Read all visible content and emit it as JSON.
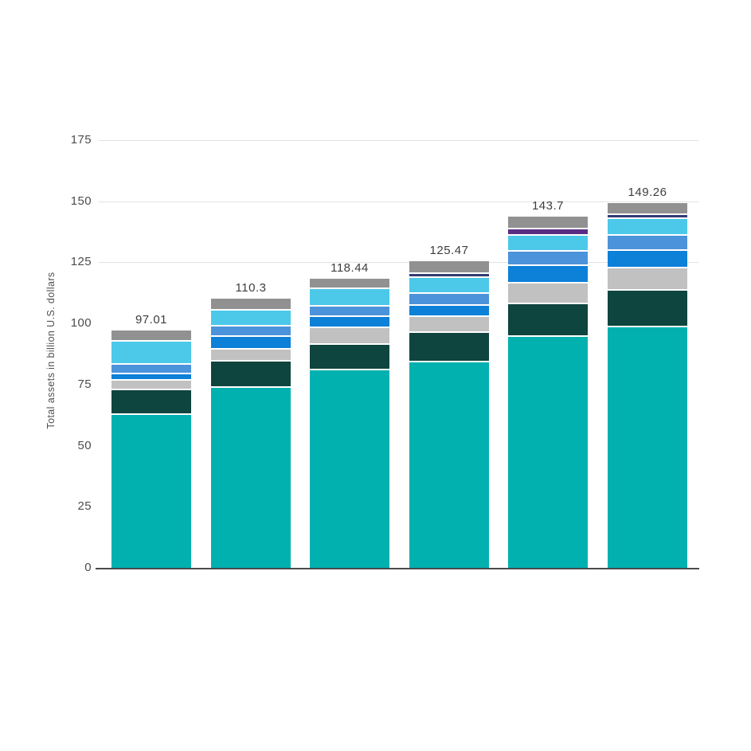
{
  "chart_data": {
    "type": "bar",
    "stacked": true,
    "title": "",
    "xlabel": "",
    "ylabel": "Total assets in billion U.S. dollars",
    "ylim": [
      0,
      175
    ],
    "y_ticks": [
      0,
      25,
      50,
      75,
      100,
      125,
      150,
      175
    ],
    "y_tick_labels": [
      "0",
      "25",
      "50",
      "75",
      "100",
      "125",
      "150",
      "175"
    ],
    "gridline_values": [
      125,
      150,
      175
    ],
    "grid": "partial-top",
    "legend": "none",
    "categories": [
      "",
      "",
      "",
      "",
      "",
      ""
    ],
    "totals": [
      97.01,
      110.3,
      118.44,
      125.47,
      143.7,
      149.26
    ],
    "total_labels": [
      "97.01",
      "110.3",
      "118.44",
      "125.47",
      "143.7",
      "149.26"
    ],
    "colors": {
      "teal": "#00b1b0",
      "dark_teal": "#0e453e",
      "light_gray": "#c2c1c1",
      "blue": "#0d80d8",
      "cornflower_blue": "#4b93da",
      "light_cyan": "#4cc8e9",
      "navy": "#333c72",
      "purple": "#5a2d85",
      "top_gray": "#919191",
      "axis_line": "#4a4a4a",
      "gridline": "#e2e2e2",
      "label_text": "#3d3d3d",
      "tick_text": "#4c4c4c"
    },
    "bars": [
      {
        "label": "97.01",
        "total": 97.01,
        "segments": [
          {
            "color": "teal",
            "value": 63.31
          },
          {
            "color": "dark_teal",
            "value": 10.1
          },
          {
            "color": "light_gray",
            "value": 3.8
          },
          {
            "color": "blue",
            "value": 2.8
          },
          {
            "color": "cornflower_blue",
            "value": 3.7
          },
          {
            "color": "light_cyan",
            "value": 9.6
          },
          {
            "color": "top_gray",
            "value": 3.7
          }
        ]
      },
      {
        "label": "110.3",
        "total": 110.3,
        "segments": [
          {
            "color": "teal",
            "value": 74.4
          },
          {
            "color": "dark_teal",
            "value": 10.6
          },
          {
            "color": "light_gray",
            "value": 5.1
          },
          {
            "color": "blue",
            "value": 5.1
          },
          {
            "color": "cornflower_blue",
            "value": 4.1
          },
          {
            "color": "light_cyan",
            "value": 6.7
          },
          {
            "color": "top_gray",
            "value": 4.3
          }
        ]
      },
      {
        "label": "118.44",
        "total": 118.44,
        "segments": [
          {
            "color": "teal",
            "value": 81.5
          },
          {
            "color": "dark_teal",
            "value": 10.5
          },
          {
            "color": "light_gray",
            "value": 6.7
          },
          {
            "color": "blue",
            "value": 4.5
          },
          {
            "color": "cornflower_blue",
            "value": 4.4
          },
          {
            "color": "light_cyan",
            "value": 7.0
          },
          {
            "color": "top_gray",
            "value": 3.84
          }
        ]
      },
      {
        "label": "125.47",
        "total": 125.47,
        "segments": [
          {
            "color": "teal",
            "value": 84.8
          },
          {
            "color": "dark_teal",
            "value": 12.1
          },
          {
            "color": "light_gray",
            "value": 6.5
          },
          {
            "color": "blue",
            "value": 4.6
          },
          {
            "color": "cornflower_blue",
            "value": 4.9
          },
          {
            "color": "light_cyan",
            "value": 6.5
          },
          {
            "color": "navy",
            "value": 1.67
          },
          {
            "color": "top_gray",
            "value": 4.4
          }
        ]
      },
      {
        "label": "143.7",
        "total": 143.7,
        "segments": [
          {
            "color": "teal",
            "value": 95.0
          },
          {
            "color": "dark_teal",
            "value": 13.4
          },
          {
            "color": "light_gray",
            "value": 8.5
          },
          {
            "color": "blue",
            "value": 7.2
          },
          {
            "color": "cornflower_blue",
            "value": 5.9
          },
          {
            "color": "light_cyan",
            "value": 6.5
          },
          {
            "color": "purple",
            "value": 2.6
          },
          {
            "color": "top_gray",
            "value": 4.6
          }
        ]
      },
      {
        "label": "149.26",
        "total": 149.26,
        "segments": [
          {
            "color": "teal",
            "value": 99.0
          },
          {
            "color": "dark_teal",
            "value": 14.9
          },
          {
            "color": "light_gray",
            "value": 9.3
          },
          {
            "color": "blue",
            "value": 7.1
          },
          {
            "color": "cornflower_blue",
            "value": 6.4
          },
          {
            "color": "light_cyan",
            "value": 6.7
          },
          {
            "color": "navy",
            "value": 1.76
          },
          {
            "color": "top_gray",
            "value": 4.1
          }
        ]
      }
    ]
  }
}
